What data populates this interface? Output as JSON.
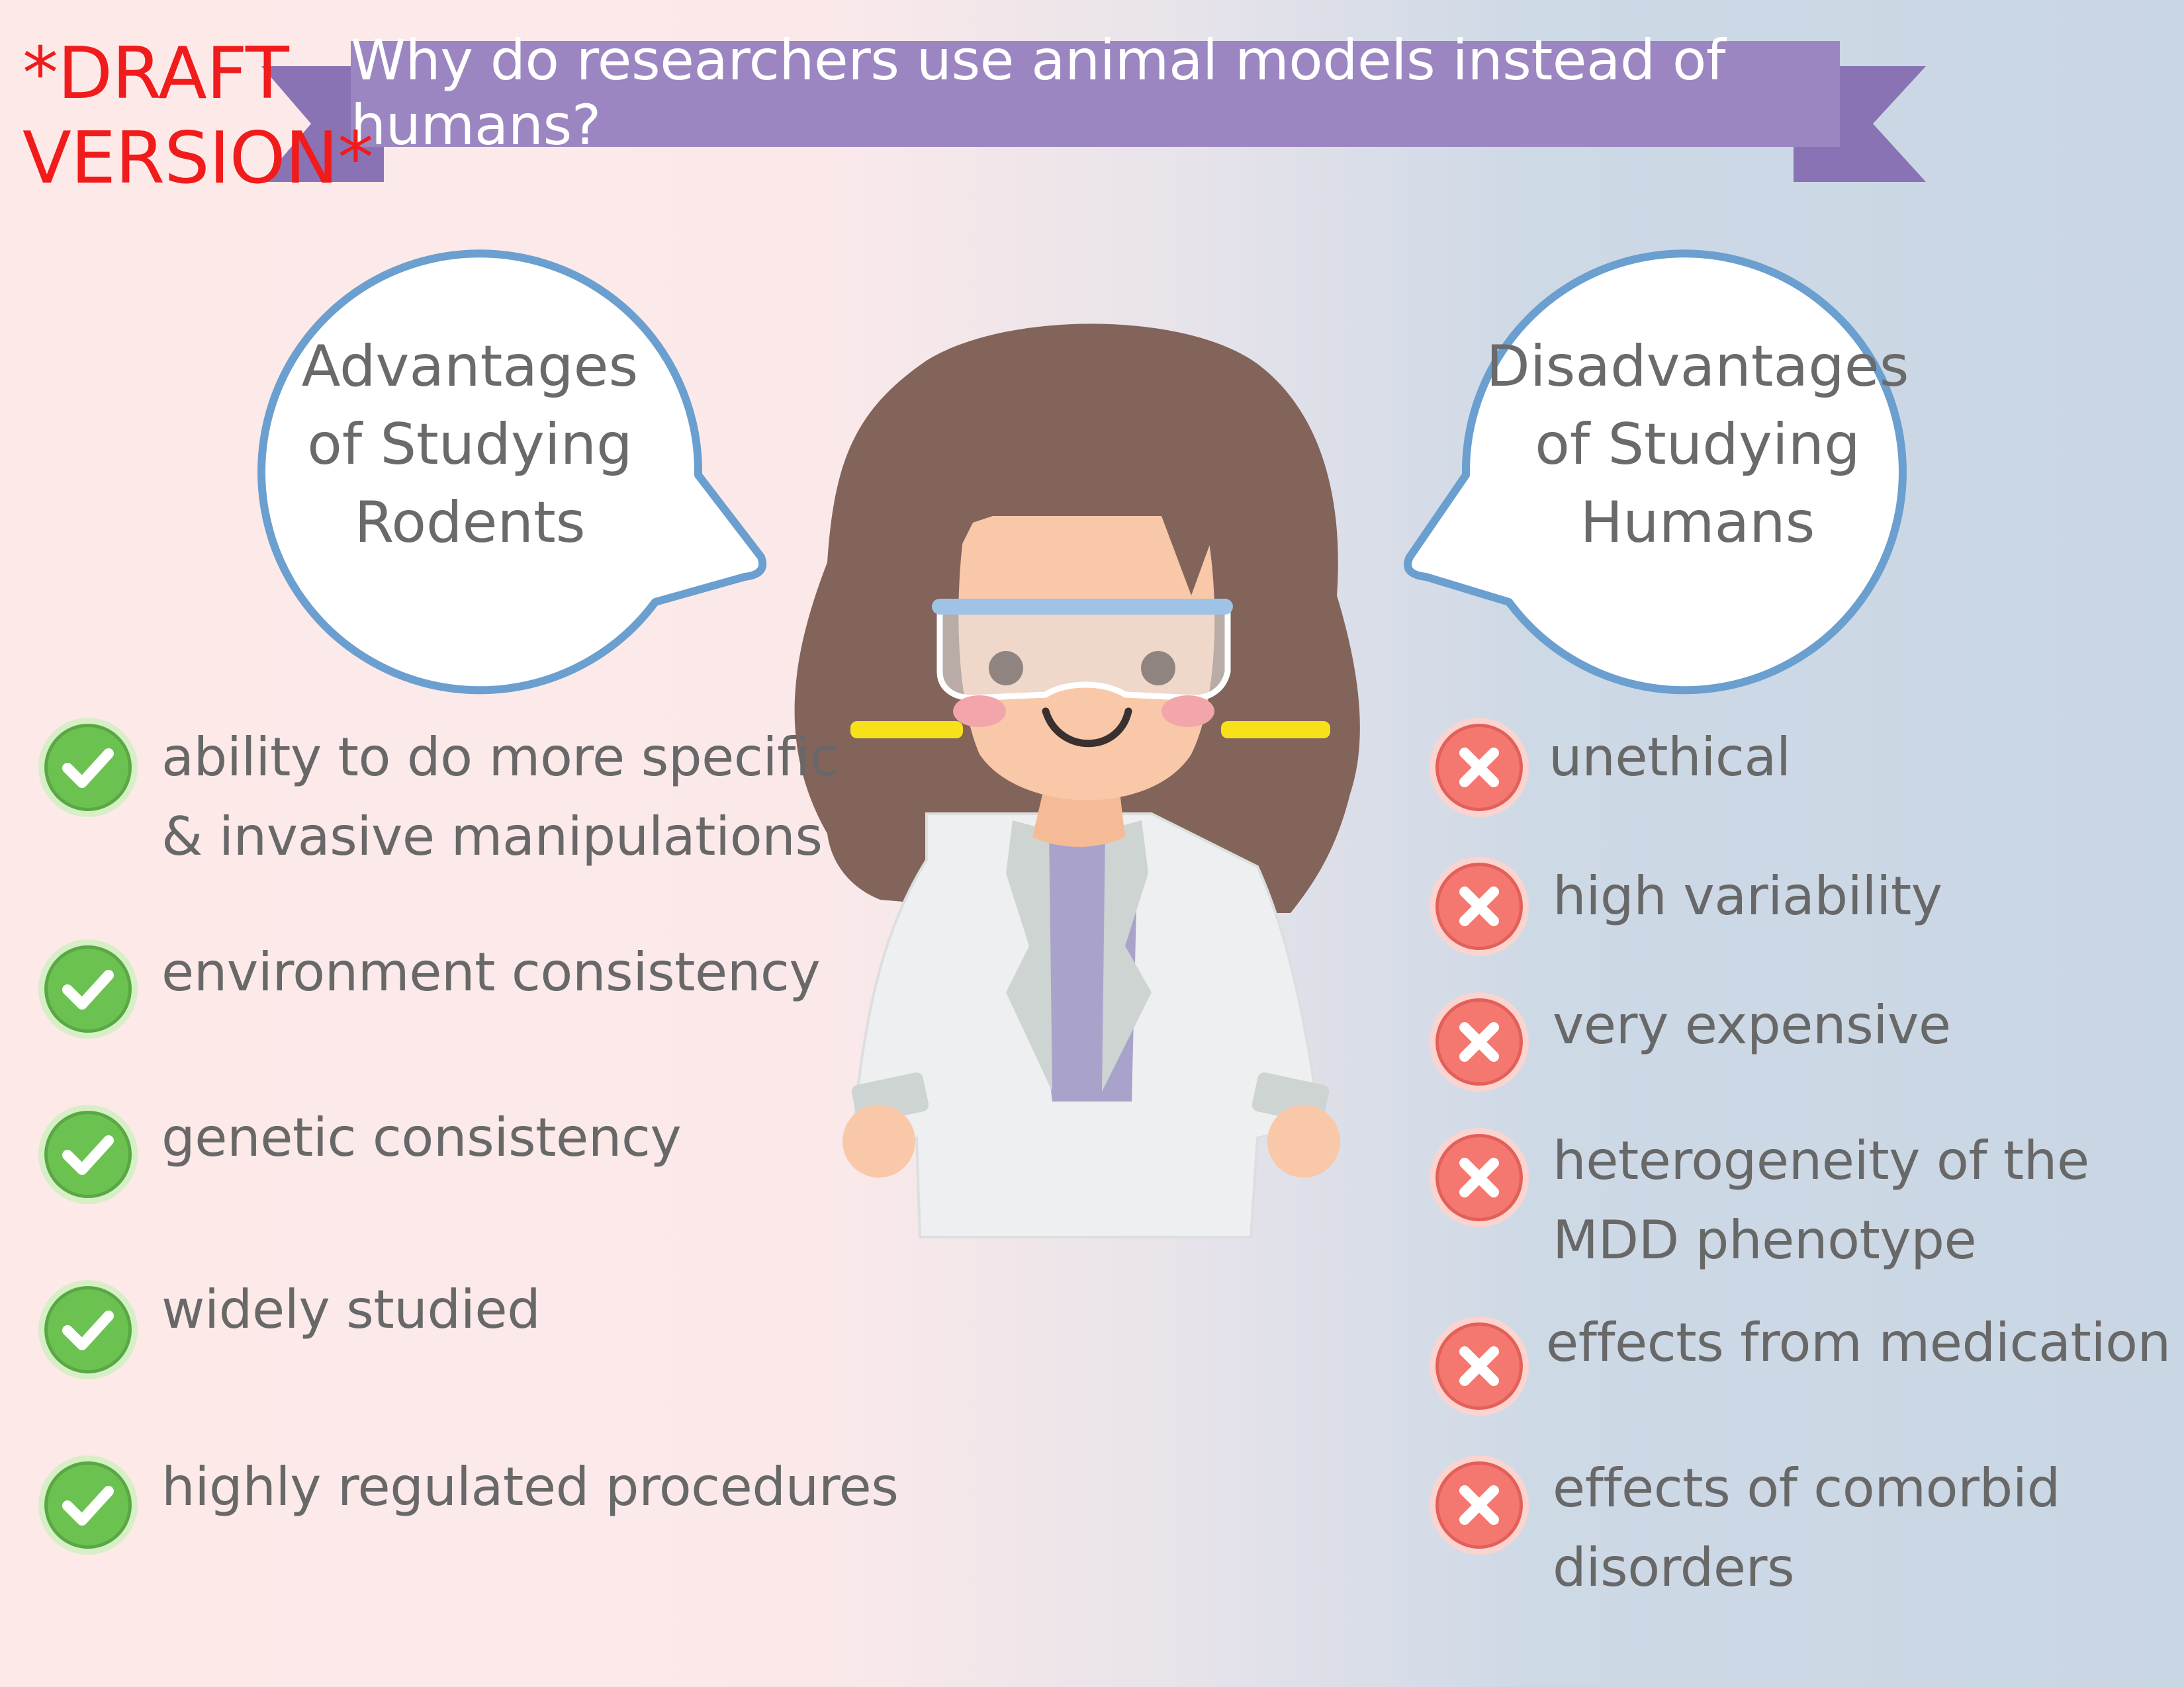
{
  "draft_label": [
    "*DRAFT",
    "VERSION*"
  ],
  "banner": {
    "title": "Why do researchers use animal models instead of humans?"
  },
  "left_bubble": {
    "lines": [
      "Advantages",
      "of Studying",
      "Rodents"
    ]
  },
  "right_bubble": {
    "lines": [
      "Disadvantages",
      "of Studying",
      "Humans"
    ]
  },
  "advantages": [
    {
      "lines": [
        "ability to do more specific",
        "& invasive manipulations"
      ],
      "icon": "check-icon"
    },
    {
      "lines": [
        "environment consistency"
      ],
      "icon": "check-icon"
    },
    {
      "lines": [
        "genetic consistency"
      ],
      "icon": "check-icon"
    },
    {
      "lines": [
        "widely studied"
      ],
      "icon": "check-icon"
    },
    {
      "lines": [
        "highly regulated procedures"
      ],
      "icon": "check-icon"
    }
  ],
  "disadvantages": [
    {
      "lines": [
        "unethical"
      ],
      "icon": "cross-icon"
    },
    {
      "lines": [
        "high variability"
      ],
      "icon": "cross-icon"
    },
    {
      "lines": [
        "very expensive"
      ],
      "icon": "cross-icon"
    },
    {
      "lines": [
        "heterogeneity of the",
        "MDD phenotype"
      ],
      "icon": "cross-icon"
    },
    {
      "lines": [
        "effects from medication"
      ],
      "icon": "cross-icon"
    },
    {
      "lines": [
        "effects of comorbid",
        "disorders"
      ],
      "icon": "cross-icon"
    }
  ],
  "colors": {
    "banner": "#9b86c1",
    "banner_tail": "#8a73b4",
    "bubble_outline": "#6a9fcf",
    "check": "#6bc251",
    "cross": "#f47770",
    "draft": "#f01b1b",
    "text": "#686868"
  }
}
